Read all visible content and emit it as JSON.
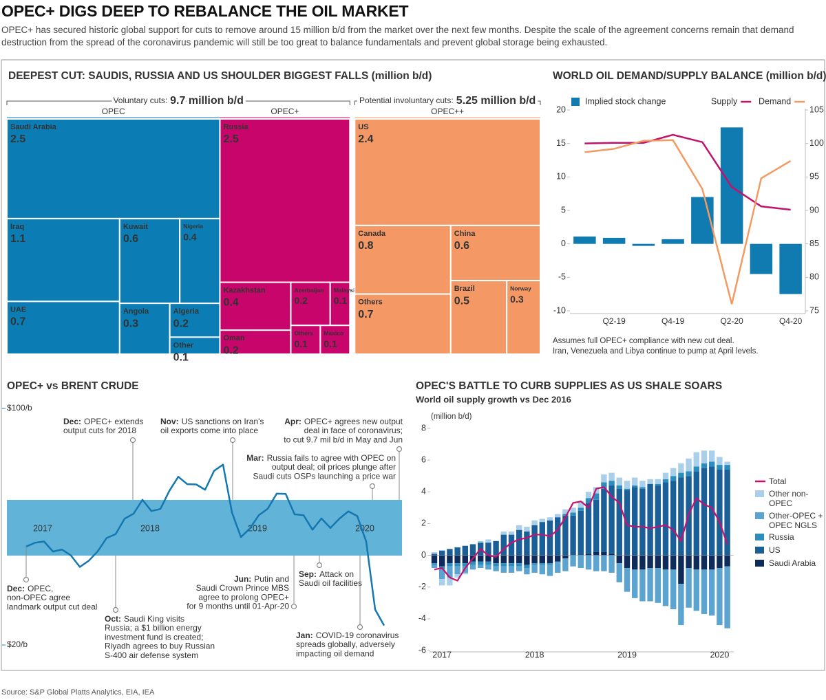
{
  "header": {
    "title": "OPEC+ DIGS DEEP TO REBALANCE THE OIL MARKET",
    "subtitle": "OPEC+ has secured historic global support for cuts to remove around 15 million b/d from the market over the next few months. Despite the scale of the agreement concerns remain that demand destruction from the spread of the coronavirus pandemic will still be too great to balance fundamentals and prevent global storage being exhausted."
  },
  "chart_data": [
    {
      "type": "treemap",
      "title": "DEEPEST CUT: SAUDIS, RUSSIA AND US SHOULDER BIGGEST FALLS (million b/d)",
      "brackets": [
        {
          "label": "Voluntary cuts:",
          "value": 9.7,
          "value_label": "9.7 million b/d",
          "groups": [
            {
              "name": "OPEC",
              "color": "#0b7db4",
              "label_color": "#1a8ac4",
              "items": [
                {
                  "name": "Saudi Arabia",
                  "value": 2.5
                },
                {
                  "name": "Iraq",
                  "value": 1.1
                },
                {
                  "name": "UAE",
                  "value": 0.7
                },
                {
                  "name": "Kuwait",
                  "value": 0.6
                },
                {
                  "name": "Nigeria",
                  "value": 0.4
                },
                {
                  "name": "Angola",
                  "value": 0.3
                },
                {
                  "name": "Algeria",
                  "value": 0.2
                },
                {
                  "name": "Other",
                  "value": 0.1
                }
              ]
            },
            {
              "name": "OPEC+",
              "color": "#c8056a",
              "label_color": "#c8056a",
              "items": [
                {
                  "name": "Russia",
                  "value": 2.5
                },
                {
                  "name": "Kazakhstan",
                  "value": 0.4
                },
                {
                  "name": "Oman",
                  "value": 0.2
                },
                {
                  "name": "Azerbaijan",
                  "value": 0.2
                },
                {
                  "name": "Malaysia",
                  "value": 0.1
                },
                {
                  "name": "Others",
                  "value": 0.1
                },
                {
                  "name": "Mexico",
                  "value": 0.1
                }
              ]
            }
          ]
        },
        {
          "label": "Potential involuntary cuts:",
          "value": 5.25,
          "value_label": "5.25 million b/d",
          "groups": [
            {
              "name": "OPEC++",
              "color": "#f49866",
              "label_color": "#f49866",
              "items": [
                {
                  "name": "US",
                  "value": 2.4
                },
                {
                  "name": "Canada",
                  "value": 0.8
                },
                {
                  "name": "Others",
                  "value": 0.7
                },
                {
                  "name": "China",
                  "value": 0.6
                },
                {
                  "name": "Brazil",
                  "value": 0.5
                },
                {
                  "name": "Norway",
                  "value": 0.3
                }
              ]
            }
          ]
        }
      ]
    },
    {
      "type": "combo",
      "title": "WORLD OIL DEMAND/SUPPLY BALANCE (million b/d)",
      "categories": [
        null,
        "Q2-19",
        null,
        "Q4-19",
        null,
        "Q2-20",
        null,
        "Q4-20"
      ],
      "series": [
        {
          "name": "Implied stock change",
          "type": "bar",
          "color": "#0f7bb0",
          "values": [
            1.1,
            0.9,
            -0.3,
            0.7,
            7.0,
            17.4,
            -4.5,
            -7.5
          ]
        },
        {
          "name": "Supply",
          "type": "line",
          "axis": "y2",
          "color": "#c2126b",
          "values": [
            100.0,
            100.1,
            100.1,
            101.3,
            100.2,
            93.5,
            90.6,
            90.1
          ]
        },
        {
          "name": "Demand",
          "type": "line",
          "axis": "y2",
          "color": "#f39a62",
          "values": [
            98.7,
            99.2,
            100.4,
            100.5,
            93.2,
            76.0,
            94.8,
            97.4
          ]
        }
      ],
      "ylim": [
        -10,
        20
      ],
      "yticks": [
        -10,
        -5,
        0,
        5,
        10,
        15,
        20
      ],
      "y2lim": [
        75,
        105
      ],
      "y2ticks": [
        75,
        80,
        85,
        90,
        95,
        100,
        105
      ],
      "notes": [
        "Assumes full OPEC+ compliance with new cut deal.",
        "Iran, Venezuela and Libya continue to pump at April levels."
      ]
    },
    {
      "type": "line",
      "title": "OPEC+ vs BRENT CRUDE",
      "categories": [
        null,
        "2017",
        null,
        null,
        null,
        null,
        null,
        null,
        null,
        null,
        null,
        null,
        null,
        "2018",
        null,
        null,
        null,
        null,
        null,
        null,
        null,
        null,
        null,
        null,
        null,
        "2019",
        null,
        null,
        null,
        null,
        null,
        null,
        null,
        null,
        null,
        null,
        null,
        "2020",
        null,
        null,
        null
      ],
      "values": [
        53.3,
        54.6,
        55.0,
        51.6,
        52.3,
        50.3,
        46.4,
        48.5,
        51.7,
        56.2,
        57.5,
        62.7,
        64.4,
        69.1,
        65.3,
        66.0,
        72.1,
        76.9,
        74.4,
        74.3,
        72.5,
        78.9,
        81.0,
        64.8,
        56.5,
        59.4,
        63.9,
        66.1,
        71.2,
        71.1,
        64.2,
        63.9,
        59.0,
        62.8,
        59.6,
        62.7,
        65.2,
        63.6,
        55.0,
        32.0,
        26.6
      ],
      "color": "#1477b0",
      "ylim": [
        20,
        100
      ],
      "yticks": [
        {
          "value": 20,
          "label": "$20/b"
        },
        {
          "value": 100,
          "label": "$100/b"
        }
      ],
      "annotations": [
        {
          "date": "Dec:",
          "lines": [
            "OPEC+ extends",
            "output cuts for 2018"
          ]
        },
        {
          "date": "Nov:",
          "lines": [
            "US sanctions on Iran's",
            "oil exports come into place"
          ]
        },
        {
          "date": "Apr:",
          "lines": [
            "OPEC+ agrees new output",
            "deal in face of coronavirus;",
            "to cut 9.7 mil b/d in May and Jun"
          ]
        },
        {
          "date": "Mar:",
          "lines": [
            "Russia fails to agree with OPEC on",
            "output deal; oil prices plunge after",
            "Saudi cuts OSPs launching a price war"
          ]
        },
        {
          "date": "Dec:",
          "lines": [
            "OPEC,",
            "non-OPEC agree",
            "landmark output cut deal"
          ]
        },
        {
          "date": "Oct:",
          "lines": [
            "Saudi King visits",
            "Russia; a $1 billion energy",
            "investment fund is created;",
            "Riyadh agrees to buy Russian",
            "S-400 air defense system"
          ]
        },
        {
          "date": "Jun:",
          "lines": [
            "Putin and",
            "Saudi Crown Prince MBS",
            "agree to prolong OPEC+",
            "for 9 months until 01-Apr-20"
          ]
        },
        {
          "date": "Sep:",
          "lines": [
            "Attack on",
            "Saudi oil facilities"
          ]
        },
        {
          "date": "Jan:",
          "lines": [
            "COVID-19 coronavirus",
            "spreads globally, adversely",
            "impacting oil demand"
          ]
        }
      ]
    },
    {
      "type": "stacked-bar",
      "title": "OPEC'S BATTLE TO CURB SUPPLIES AS US SHALE SOARS",
      "subtitle": "World oil supply growth vs Dec 2016",
      "y_label": "(million b/d)",
      "categories": [
        null,
        "2017",
        null,
        null,
        null,
        null,
        null,
        null,
        null,
        null,
        null,
        null,
        null,
        "2018",
        null,
        null,
        null,
        null,
        null,
        null,
        null,
        null,
        null,
        null,
        null,
        "2019",
        null,
        null,
        null,
        null,
        null,
        null,
        null,
        null,
        null,
        null,
        null,
        "2020",
        null
      ],
      "series": [
        {
          "name": "Total",
          "type": "line",
          "color": "#c8106e",
          "values": [
            -0.9,
            -0.8,
            -1.4,
            -1.6,
            -0.8,
            -0.2,
            0.4,
            0.0,
            -0.1,
            0.4,
            0.8,
            1.0,
            1.1,
            1.3,
            1.3,
            1.2,
            1.6,
            2.4,
            3.3,
            3.4,
            3.0,
            4.2,
            4.3,
            3.7,
            3.3,
            1.9,
            1.8,
            1.8,
            1.7,
            1.8,
            1.9,
            1.6,
            0.9,
            2.6,
            3.6,
            3.2,
            3.0,
            2.1,
            0.7
          ]
        },
        {
          "name": "Other non-OPEC",
          "color": "#a9d0e8",
          "values": [
            0.1,
            -0.4,
            -0.5,
            -0.2,
            -0.1,
            0.0,
            0.1,
            0.2,
            0.0,
            0.2,
            0.2,
            0.3,
            0.3,
            0.3,
            0.2,
            0.2,
            0.2,
            0.3,
            0.3,
            0.4,
            0.4,
            0.4,
            0.5,
            0.5,
            0.5,
            0.5,
            0.5,
            0.4,
            0.3,
            0.3,
            0.4,
            0.5,
            0.6,
            0.8,
            0.9,
            0.8,
            0.7,
            0.5,
            0.2
          ]
        },
        {
          "name": "Other-OPEC + OPEC NGLS",
          "color": "#5ba4d0",
          "values": [
            -0.2,
            -0.6,
            -0.7,
            -0.5,
            -0.4,
            -0.3,
            -0.2,
            -0.3,
            -0.3,
            -0.4,
            -0.4,
            -0.3,
            -0.4,
            -0.5,
            -0.6,
            -0.7,
            -0.7,
            -0.8,
            -0.7,
            -0.8,
            -0.9,
            -1.0,
            -1.0,
            -1.1,
            -1.2,
            -1.5,
            -1.8,
            -2.0,
            -2.1,
            -2.2,
            -2.3,
            -2.5,
            -2.6,
            -2.5,
            -2.6,
            -2.8,
            -2.9,
            -3.6,
            -3.9
          ]
        },
        {
          "name": "Russia",
          "color": "#2b8dbd",
          "values": [
            -0.1,
            -0.2,
            -0.2,
            -0.2,
            -0.2,
            -0.2,
            -0.2,
            -0.2,
            -0.2,
            -0.2,
            -0.2,
            -0.2,
            -0.2,
            -0.1,
            -0.1,
            -0.1,
            0.0,
            0.1,
            0.2,
            0.2,
            0.3,
            0.4,
            0.4,
            0.3,
            0.2,
            0.1,
            0.1,
            0.1,
            0.0,
            0.1,
            0.2,
            0.3,
            0.3,
            0.3,
            0.3,
            0.3,
            0.3,
            0.3,
            0.3
          ]
        },
        {
          "name": "US",
          "color": "#1b5f99",
          "values": [
            0.1,
            0.3,
            0.4,
            0.5,
            0.6,
            0.7,
            0.8,
            0.8,
            0.9,
            1.3,
            1.3,
            1.6,
            1.5,
            1.9,
            2.1,
            2.2,
            2.4,
            2.5,
            2.5,
            2.8,
            3.2,
            3.3,
            4.0,
            4.3,
            4.2,
            4.1,
            4.3,
            4.2,
            4.5,
            4.4,
            4.6,
            4.7,
            4.9,
            5.0,
            5.3,
            5.5,
            5.6,
            5.4,
            5.4
          ]
        },
        {
          "name": "Saudi Arabia",
          "color": "#0e2b5a",
          "values": [
            -0.5,
            -0.7,
            -0.5,
            -0.5,
            -0.5,
            -0.4,
            -0.4,
            -0.4,
            -0.5,
            -0.5,
            -0.5,
            -0.5,
            -0.6,
            -0.5,
            -0.5,
            -0.5,
            -0.4,
            -0.2,
            0.0,
            0.0,
            0.1,
            0.2,
            0.2,
            0.1,
            -0.5,
            -0.8,
            -0.9,
            -0.9,
            -0.8,
            -0.8,
            -0.9,
            -0.9,
            -1.8,
            -0.8,
            -0.9,
            -0.9,
            -0.9,
            -0.8,
            -0.7
          ]
        }
      ],
      "ylim": [
        -6,
        8
      ],
      "yticks": [
        -6,
        -4,
        -2,
        0,
        2,
        4,
        6,
        8
      ]
    }
  ],
  "source": "Source: S&P Global Platts Analytics, EIA, IEA"
}
